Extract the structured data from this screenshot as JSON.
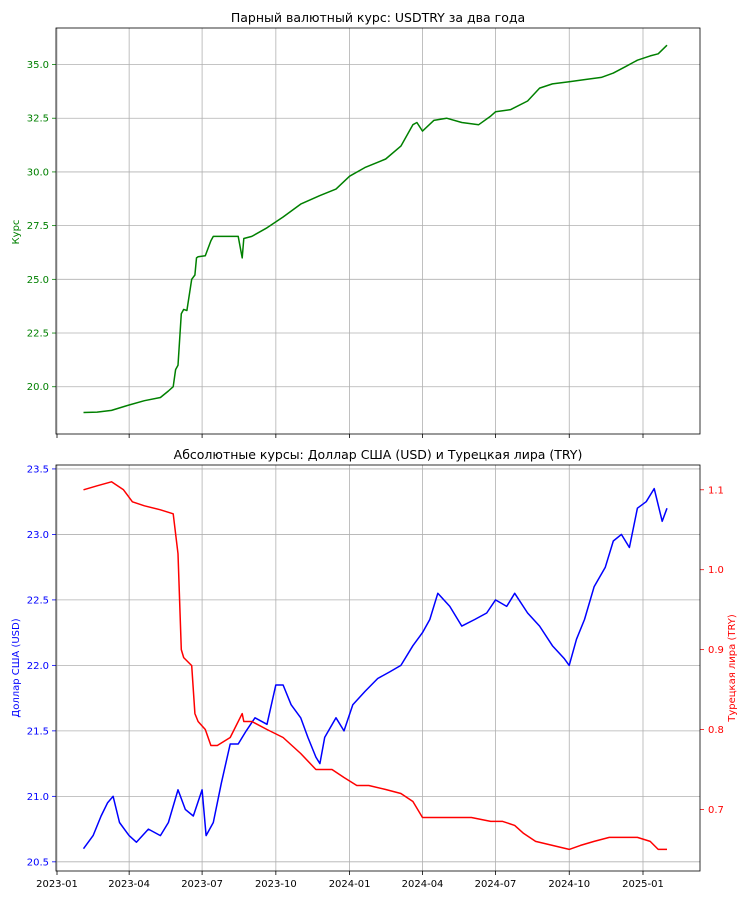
{
  "chart_data": [
    {
      "type": "line",
      "title": "Парный валютный курс: USDTRY за два года",
      "ylabel": "Курс",
      "xlabel": "",
      "ylim": [
        17.8,
        36.7
      ],
      "yticks": [
        20.0,
        22.5,
        25.0,
        27.5,
        30.0,
        32.5,
        35.0
      ],
      "ytick_labels": [
        "20.0",
        "22.5",
        "25.0",
        "27.5",
        "30.0",
        "32.5",
        "35.0"
      ],
      "grid": true,
      "colors": {
        "series": "#008000",
        "axis_label": "#008000",
        "tick_label": "#008000"
      },
      "series": [
        {
          "x": [
            "2023-02-03",
            "2023-02-20",
            "2023-03-10",
            "2023-04-01",
            "2023-04-20",
            "2023-05-10",
            "2023-05-20",
            "2023-05-26",
            "2023-05-29",
            "2023-06-01",
            "2023-06-05",
            "2023-06-08",
            "2023-06-12",
            "2023-06-18",
            "2023-06-22",
            "2023-06-24",
            "2023-06-26",
            "2023-07-05",
            "2023-07-12",
            "2023-07-15",
            "2023-07-30",
            "2023-08-15",
            "2023-08-20",
            "2023-08-22",
            "2023-09-01",
            "2023-09-20",
            "2023-10-10",
            "2023-11-01",
            "2023-11-25",
            "2023-12-15",
            "2024-01-01",
            "2024-01-20",
            "2024-02-15",
            "2024-03-05",
            "2024-03-20",
            "2024-03-25",
            "2024-04-01",
            "2024-04-15",
            "2024-05-01",
            "2024-05-20",
            "2024-06-10",
            "2024-06-25",
            "2024-07-01",
            "2024-07-20",
            "2024-08-10",
            "2024-08-25",
            "2024-09-10",
            "2024-10-01",
            "2024-10-20",
            "2024-11-10",
            "2024-11-25",
            "2024-12-10",
            "2024-12-25",
            "2025-01-10",
            "2025-01-20",
            "2025-01-31"
          ],
          "y": [
            18.8,
            18.82,
            18.9,
            19.15,
            19.35,
            19.5,
            19.8,
            20.0,
            20.8,
            21.0,
            23.4,
            23.6,
            23.55,
            25.0,
            25.2,
            26.0,
            26.05,
            26.1,
            26.8,
            27.0,
            27.0,
            27.0,
            26.0,
            26.9,
            27.0,
            27.4,
            27.9,
            28.5,
            28.9,
            29.2,
            29.8,
            30.2,
            30.6,
            31.2,
            32.2,
            32.3,
            31.9,
            32.4,
            32.5,
            32.3,
            32.2,
            32.6,
            32.8,
            32.9,
            33.3,
            33.9,
            34.1,
            34.2,
            34.3,
            34.4,
            34.6,
            34.9,
            35.2,
            35.4,
            35.5,
            35.9
          ]
        }
      ]
    },
    {
      "type": "line",
      "title": "Абсолютные курсы: Доллар США (USD) и Турецкая лира (TRY)",
      "xlabel": "",
      "ylabel": "Доллар США (USD)",
      "ylabel_right": "Турецкая лира (TRY)",
      "ylim": [
        20.43,
        23.53
      ],
      "ylim_right": [
        0.623,
        1.131
      ],
      "yticks": [
        20.5,
        21.0,
        21.5,
        22.0,
        22.5,
        23.0,
        23.5
      ],
      "ytick_labels": [
        "20.5",
        "21.0",
        "21.5",
        "22.0",
        "22.5",
        "23.0",
        "23.5"
      ],
      "yticks_right": [
        0.7,
        0.8,
        0.9,
        1.0,
        1.1
      ],
      "ytick_labels_right": [
        "0.7",
        "0.8",
        "0.9",
        "1.0",
        "1.1"
      ],
      "x_tick_dates": [
        "2023-01-01",
        "2023-04-01",
        "2023-07-01",
        "2023-10-01",
        "2024-01-01",
        "2024-04-01",
        "2024-07-01",
        "2024-10-01",
        "2025-01-01"
      ],
      "x_tick_labels": [
        "2023-01",
        "2023-04",
        "2023-07",
        "2023-10",
        "2024-01",
        "2024-04",
        "2024-07",
        "2024-10",
        "2025-01"
      ],
      "grid": true,
      "colors": {
        "usd": "#0000ff",
        "try": "#ff0000"
      },
      "series": [
        {
          "name": "Доллар США (USD)",
          "axis": "left",
          "x": [
            "2023-02-03",
            "2023-02-15",
            "2023-02-25",
            "2023-03-05",
            "2023-03-12",
            "2023-03-20",
            "2023-04-01",
            "2023-04-10",
            "2023-04-25",
            "2023-05-10",
            "2023-05-20",
            "2023-06-01",
            "2023-06-10",
            "2023-06-20",
            "2023-07-01",
            "2023-07-06",
            "2023-07-15",
            "2023-07-25",
            "2023-08-05",
            "2023-08-15",
            "2023-08-25",
            "2023-09-05",
            "2023-09-20",
            "2023-10-01",
            "2023-10-10",
            "2023-10-20",
            "2023-11-01",
            "2023-11-10",
            "2023-11-20",
            "2023-11-25",
            "2023-12-01",
            "2023-12-15",
            "2023-12-25",
            "2024-01-05",
            "2024-01-20",
            "2024-02-05",
            "2024-02-20",
            "2024-03-05",
            "2024-03-20",
            "2024-04-01",
            "2024-04-10",
            "2024-04-20",
            "2024-05-05",
            "2024-05-20",
            "2024-06-05",
            "2024-06-20",
            "2024-07-01",
            "2024-07-15",
            "2024-07-25",
            "2024-08-10",
            "2024-08-25",
            "2024-09-10",
            "2024-09-25",
            "2024-10-01",
            "2024-10-10",
            "2024-10-20",
            "2024-11-01",
            "2024-11-15",
            "2024-11-25",
            "2024-12-05",
            "2024-12-15",
            "2024-12-25",
            "2025-01-05",
            "2025-01-15",
            "2025-01-25",
            "2025-01-31"
          ],
          "y": [
            20.6,
            20.7,
            20.85,
            20.95,
            21.0,
            20.8,
            20.7,
            20.65,
            20.75,
            20.7,
            20.8,
            21.05,
            20.9,
            20.85,
            21.05,
            20.7,
            20.8,
            21.1,
            21.4,
            21.4,
            21.5,
            21.6,
            21.55,
            21.85,
            21.85,
            21.7,
            21.6,
            21.45,
            21.3,
            21.25,
            21.45,
            21.6,
            21.5,
            21.7,
            21.8,
            21.9,
            21.95,
            22.0,
            22.15,
            22.25,
            22.35,
            22.55,
            22.45,
            22.3,
            22.35,
            22.4,
            22.5,
            22.45,
            22.55,
            22.4,
            22.3,
            22.15,
            22.05,
            22.0,
            22.2,
            22.35,
            22.6,
            22.75,
            22.95,
            23.0,
            22.9,
            23.2,
            23.25,
            23.35,
            23.1,
            23.2
          ]
        },
        {
          "name": "Турецкая лира (TRY)",
          "axis": "right",
          "x": [
            "2023-02-03",
            "2023-02-20",
            "2023-03-10",
            "2023-03-25",
            "2023-04-05",
            "2023-04-20",
            "2023-05-10",
            "2023-05-26",
            "2023-06-01",
            "2023-06-05",
            "2023-06-08",
            "2023-06-18",
            "2023-06-22",
            "2023-06-26",
            "2023-07-05",
            "2023-07-12",
            "2023-07-20",
            "2023-08-05",
            "2023-08-20",
            "2023-08-22",
            "2023-09-01",
            "2023-09-20",
            "2023-10-10",
            "2023-11-01",
            "2023-11-20",
            "2023-12-10",
            "2023-12-25",
            "2024-01-10",
            "2024-01-25",
            "2024-02-15",
            "2024-03-05",
            "2024-03-20",
            "2024-04-01",
            "2024-04-20",
            "2024-05-10",
            "2024-06-01",
            "2024-06-25",
            "2024-07-10",
            "2024-07-25",
            "2024-08-05",
            "2024-08-20",
            "2024-09-10",
            "2024-10-01",
            "2024-10-15",
            "2024-11-01",
            "2024-11-20",
            "2024-12-05",
            "2024-12-25",
            "2025-01-10",
            "2025-01-20",
            "2025-01-31"
          ],
          "y": [
            1.1,
            1.105,
            1.11,
            1.1,
            1.085,
            1.08,
            1.075,
            1.07,
            1.02,
            0.9,
            0.89,
            0.88,
            0.82,
            0.81,
            0.8,
            0.78,
            0.78,
            0.79,
            0.82,
            0.81,
            0.81,
            0.8,
            0.79,
            0.77,
            0.75,
            0.75,
            0.74,
            0.73,
            0.73,
            0.725,
            0.72,
            0.71,
            0.69,
            0.69,
            0.69,
            0.69,
            0.685,
            0.685,
            0.68,
            0.67,
            0.66,
            0.655,
            0.65,
            0.655,
            0.66,
            0.665,
            0.665,
            0.665,
            0.66,
            0.65,
            0.65
          ]
        }
      ]
    }
  ]
}
